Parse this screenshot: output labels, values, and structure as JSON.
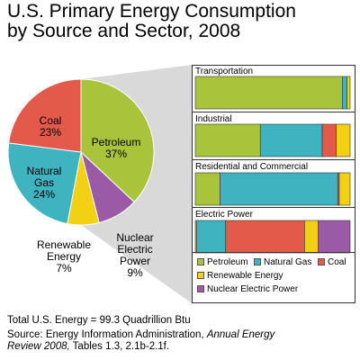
{
  "title_line1": "U.S. Primary Energy Consumption",
  "title_line2": "by Source and Sector, 2008",
  "colors": {
    "petroleum": "#a9c43a",
    "natural_gas": "#3fb3bf",
    "coal": "#e35a4a",
    "renewable": "#f2d013",
    "nuclear": "#9b5aa5",
    "connector": "#d9d9d9"
  },
  "legend": {
    "petroleum": "Petroleum",
    "natural_gas": "Natural Gas",
    "coal": "Coal",
    "renewable": "Renewable Energy",
    "nuclear": "Nuclear Electric Power"
  },
  "pie_labels": {
    "petroleum_name": "Petroleum",
    "petroleum_pct": "37%",
    "coal_name": "Coal",
    "coal_pct": "23%",
    "natural_gas_name_1": "Natural",
    "natural_gas_name_2": "Gas",
    "natural_gas_pct": "24%",
    "renewable_name_1": "Renewable",
    "renewable_name_2": "Energy",
    "renewable_pct": "7%",
    "nuclear_name_1": "Nuclear",
    "nuclear_name_2": "Electric",
    "nuclear_name_3": "Power",
    "nuclear_pct": "9%"
  },
  "footnote_total": "Total U.S. Energy = 99.3 Quadrillion Btu",
  "source_line1_a": "Source:  Energy Information Administration, ",
  "source_line1_b": "Annual Energy",
  "source_line2_a": "Review 2008,",
  "source_line2_b": " Tables 1.3, 2.1b-2.1f.",
  "chart_data": [
    {
      "type": "pie",
      "categories": [
        "Petroleum",
        "Natural Gas",
        "Coal",
        "Renewable Energy",
        "Nuclear Electric Power"
      ],
      "values": [
        37,
        24,
        23,
        7,
        9
      ],
      "unit": "%"
    },
    {
      "type": "bar",
      "orientation": "horizontal",
      "stacked": "100%",
      "categories": [
        "Transportation",
        "Industrial",
        "Residential and Commercial",
        "Electric Power"
      ],
      "series": [
        {
          "name": "Petroleum",
          "values": [
            95,
            42,
            16,
            1
          ]
        },
        {
          "name": "Natural Gas",
          "values": [
            3,
            40,
            76,
            19
          ]
        },
        {
          "name": "Coal",
          "values": [
            0,
            9,
            1,
            52
          ]
        },
        {
          "name": "Renewable Energy",
          "values": [
            2,
            9,
            7,
            9
          ]
        },
        {
          "name": "Nuclear Electric Power",
          "values": [
            0,
            0,
            0,
            21
          ]
        }
      ],
      "unit": "%",
      "legend_position": "bottom"
    }
  ]
}
